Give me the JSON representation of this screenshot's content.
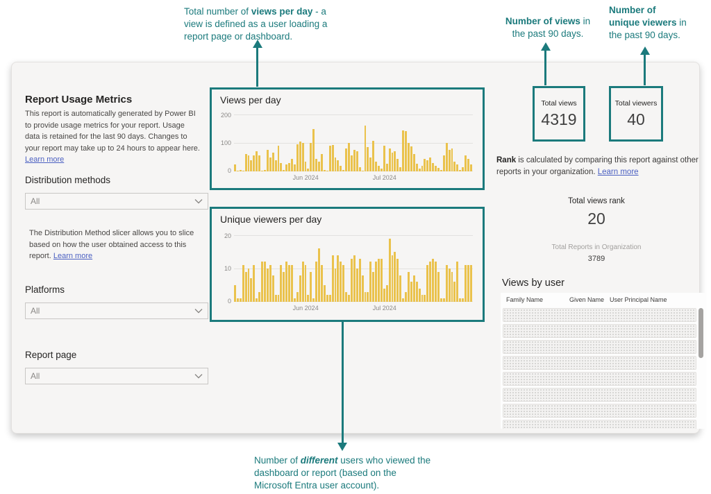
{
  "colors": {
    "accent_teal": "#1b7a7c",
    "bar_yellow": "#eac24c",
    "link_blue": "#4a5fc1"
  },
  "annotations": {
    "views_per_day": {
      "s1": "Total number of ",
      "s2": "views per day",
      "s3": " - a view is defined as a user loading a report page or dashboard."
    },
    "total_views": {
      "s1": "Number of views",
      "s2": " in the past 90 days."
    },
    "unique_viewers": {
      "l1": "Number of",
      "l2b": "unique viewers",
      "l2r": " in",
      "l3": "the past 90 days."
    },
    "different_users": {
      "s1": "Number of ",
      "s2": "different",
      "s3": " users who viewed the dashboard or report (based on the Microsoft Entra user account)."
    }
  },
  "left_panel": {
    "title": "Report Usage Metrics",
    "description": "This report is automatically generated by Power BI to provide usage metrics for your report. Usage data is retained for the last 90 days. Changes to your report may take up to 24 hours to appear here. ",
    "description_link": "Learn more",
    "distribution_label": "Distribution methods",
    "distribution_value": "All",
    "slicer_note": "The Distribution Method slicer allows you to slice based on how the user obtained access to this report. ",
    "slicer_note_link": "Learn more",
    "platforms_label": "Platforms",
    "platforms_value": "All",
    "report_page_label": "Report page",
    "report_page_value": "All"
  },
  "chart_data": [
    {
      "type": "bar",
      "title": "Views per day",
      "ylim": [
        0,
        200
      ],
      "yticks": [
        "200",
        "100",
        "0"
      ],
      "xticks": [
        "Jun 2024",
        "Jul 2024"
      ],
      "xtick_pos": [
        "30%",
        "63%"
      ],
      "legend": "none",
      "grid": "horizontal",
      "values": [
        25,
        3,
        5,
        3,
        60,
        55,
        40,
        57,
        70,
        55,
        3,
        6,
        75,
        50,
        65,
        40,
        90,
        30,
        4,
        25,
        30,
        45,
        25,
        95,
        105,
        100,
        35,
        10,
        100,
        150,
        45,
        35,
        62,
        5,
        3,
        90,
        92,
        50,
        40,
        20,
        5,
        80,
        100,
        55,
        75,
        70,
        15,
        3,
        160,
        85,
        50,
        108,
        35,
        20,
        10,
        90,
        28,
        80,
        65,
        70,
        45,
        15,
        145,
        142,
        100,
        88,
        62,
        28,
        10,
        20,
        45,
        40,
        50,
        30,
        20,
        12,
        5,
        55,
        100,
        75,
        80,
        35,
        25,
        5,
        15,
        55,
        45,
        25
      ]
    },
    {
      "type": "bar",
      "title": "Unique viewers per day",
      "ylim": [
        0,
        20
      ],
      "yticks": [
        "20",
        "10",
        "0"
      ],
      "xticks": [
        "Jun 2024",
        "Jul 2024"
      ],
      "xtick_pos": [
        "30%",
        "63%"
      ],
      "legend": "none",
      "grid": "horizontal",
      "values": [
        5,
        1,
        1,
        11,
        9,
        10,
        7,
        11,
        1,
        3,
        12,
        12,
        10,
        11,
        8,
        2,
        2,
        11,
        9,
        12,
        11,
        11,
        1,
        3,
        8,
        12,
        11,
        2,
        9,
        1,
        12,
        16,
        11,
        5,
        2,
        2,
        14,
        10,
        14,
        12,
        11,
        3,
        2,
        13,
        14,
        10,
        13,
        8,
        3,
        3,
        12,
        9,
        12,
        13,
        13,
        4,
        5,
        19,
        14,
        15,
        13,
        8,
        1,
        3,
        9,
        6,
        8,
        6,
        4,
        2,
        2,
        11,
        12,
        13,
        12,
        9,
        1,
        1,
        11,
        10,
        9,
        6,
        12,
        1,
        1,
        11,
        11,
        11
      ]
    }
  ],
  "stats": {
    "total_views_label": "Total views",
    "total_views_value": "4319",
    "total_viewers_label": "Total viewers",
    "total_viewers_value": "40"
  },
  "rank": {
    "bold": "Rank",
    "text": " is calculated by comparing this report against other reports in your organization. ",
    "link": "Learn more",
    "views_rank_label": "Total views rank",
    "views_rank_value": "20",
    "org_label": "Total Reports in Organization",
    "org_value": "3789"
  },
  "views_by_user": {
    "title": "Views by user",
    "columns": [
      "Family Name",
      "Given Name",
      "User Principal Name"
    ],
    "redacted_rows": 8
  }
}
